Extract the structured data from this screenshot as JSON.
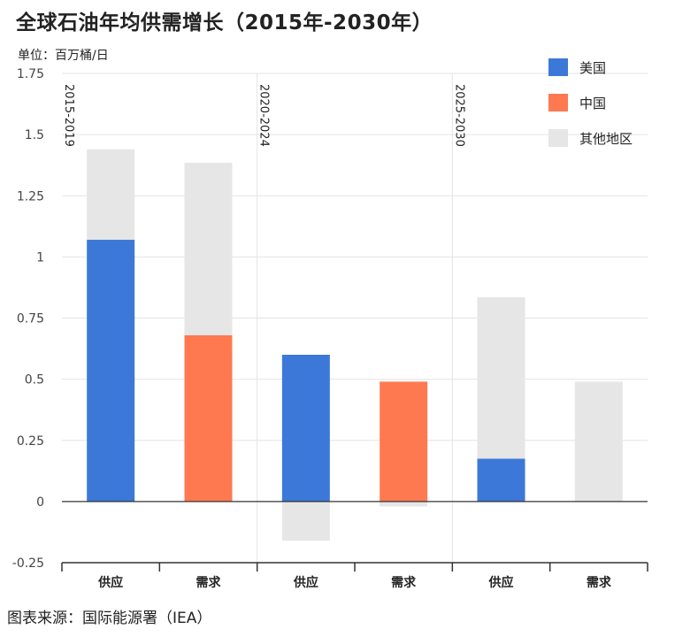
{
  "title": "全球石油年均供需增长（2015年-2030年）",
  "unit_label": "单位：百万桶/日",
  "source": "图表来源：国际能源署（IEA）",
  "colors": {
    "us": "#3c78d8",
    "china": "#ff7950",
    "others": "#e6e6e6",
    "grid": "#e4e4e4",
    "axis": "#333333"
  },
  "chart_data": {
    "type": "bar",
    "stacked": true,
    "ylim": [
      -0.25,
      1.75
    ],
    "yticks": [
      -0.25,
      0,
      0.25,
      0.5,
      0.75,
      1,
      1.25,
      1.5,
      1.75
    ],
    "ytick_labels": [
      "-0.25",
      "0",
      "0.25",
      "0.5",
      "0.75",
      "1",
      "1.25",
      "1.5",
      "1.75"
    ],
    "categories": [
      "供应",
      "需求",
      "供应",
      "需求",
      "供应",
      "需求"
    ],
    "periods": [
      {
        "label": "2015-2019"
      },
      {
        "label": "2020-2024"
      },
      {
        "label": "2025-2030"
      }
    ],
    "series": [
      {
        "name": "美国",
        "color_key": "us",
        "values": [
          1.07,
          0,
          0.6,
          0,
          0.175,
          0
        ]
      },
      {
        "name": "中国",
        "color_key": "china",
        "values": [
          0,
          0.68,
          0,
          0.49,
          0,
          0
        ]
      },
      {
        "name": "其他地区",
        "color_key": "others",
        "values": [
          0.37,
          0.705,
          -0.16,
          -0.02,
          0.66,
          0.49
        ]
      }
    ],
    "legend_position": "top-right",
    "grid": true
  }
}
